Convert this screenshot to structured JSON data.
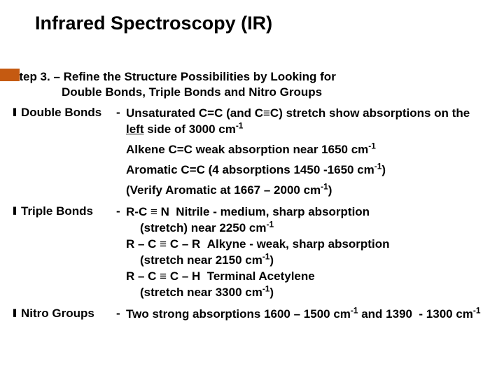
{
  "title": "Infrared Spectroscopy (IR)",
  "step_label": "Step 3. – Refine the Structure Possibilities by Looking for",
  "step_label2": "Double Bonds, Triple Bonds and Nitro Groups",
  "sections": [
    {
      "label": "Double Bonds",
      "dash": "-",
      "html": "Unsaturated C=C (and C≡C) stretch show absorptions on the <span class=\"u\">left</span> side of 3000 cm<sup>-1</sup>|Alkene C=C weak absorption near 1650 cm<sup>-1</sup>|Aromatic C=C (4 absorptions 1450 -1650 cm<sup>-1</sup>)|(Verify Aromatic at 1667 – 2000 cm<sup>-1</sup>)"
    },
    {
      "label": "Triple Bonds",
      "dash": "-",
      "html": "R-C ≡ N&nbsp;&nbsp;Nitrile - medium, sharp absorption<span class=\"sub-indent\">(stretch) near 2250 cm<sup>-1</sup></span>R – C ≡ C – R&nbsp;&nbsp;Alkyne - weak, sharp absorption<span class=\"sub-indent\">(stretch near 2150 cm<sup>-1</sup>)</span>R – C ≡ C – H&nbsp;&nbsp;Terminal Acetylene<span class=\"sub-indent\">(stretch near 3300 cm<sup>-1</sup>)</span>"
    },
    {
      "label": "Nitro Groups",
      "dash": "-",
      "html": "Two strong absorptions 1600 – 1500 cm<sup>-1</sup> and 1390&nbsp;&nbsp;- 1300 cm<sup>-1</sup>"
    }
  ],
  "colors": {
    "accent": "#c55a11",
    "text": "#000000",
    "background": "#ffffff"
  }
}
